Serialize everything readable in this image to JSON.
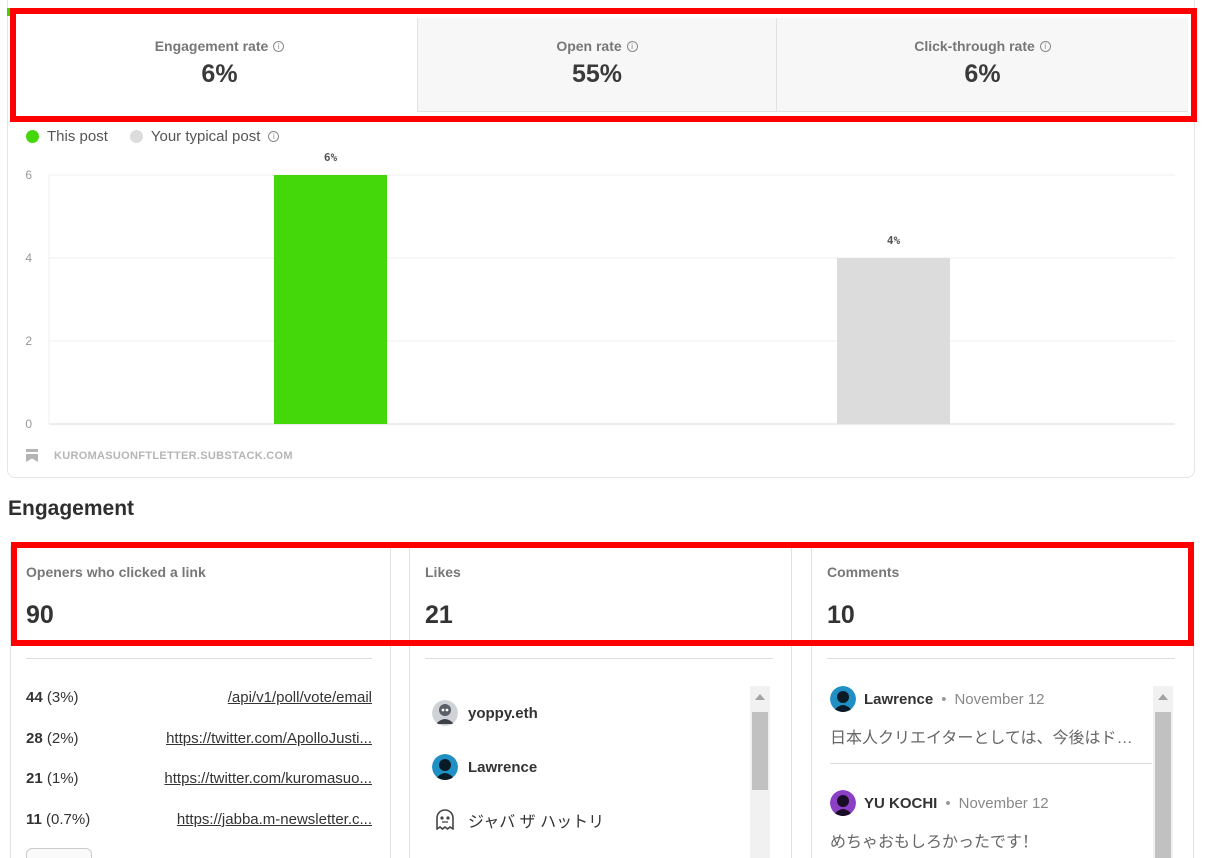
{
  "metrics": {
    "tabs": [
      {
        "label": "Engagement rate",
        "value": "6%",
        "active": true
      },
      {
        "label": "Open rate",
        "value": "55%",
        "active": false
      },
      {
        "label": "Click-through rate",
        "value": "6%",
        "active": false
      }
    ]
  },
  "legend": {
    "this_post": "This post",
    "typical_post": "Your typical post"
  },
  "chart_data": {
    "type": "bar",
    "categories": [
      "This post",
      "Your typical post"
    ],
    "values": [
      6,
      4
    ],
    "data_labels": [
      "6%",
      "4%"
    ],
    "colors": [
      "#44d80a",
      "#dcdcdc"
    ],
    "yticks": [
      0,
      2,
      4,
      6
    ],
    "ylim": [
      0,
      6
    ],
    "grid": true
  },
  "watermark": "KUROMASUONFTLETTER.SUBSTACK.COM",
  "engagement": {
    "title": "Engagement",
    "clicks": {
      "label": "Openers who clicked a link",
      "value": "90",
      "links": [
        {
          "count": "44",
          "pct": "(3%)",
          "url": "/api/v1/poll/vote/email"
        },
        {
          "count": "28",
          "pct": "(2%)",
          "url": "https://twitter.com/ApolloJusti..."
        },
        {
          "count": "21",
          "pct": "(1%)",
          "url": "https://twitter.com/kuromasuo..."
        },
        {
          "count": "11",
          "pct": "(0.7%)",
          "url": "https://jabba.m-newsletter.c..."
        }
      ]
    },
    "likes": {
      "label": "Likes",
      "value": "21",
      "users": [
        "yoppy.eth",
        "Lawrence",
        "ジャバ ザ ハットリ"
      ]
    },
    "comments": {
      "label": "Comments",
      "value": "10",
      "items": [
        {
          "author": "Lawrence",
          "date": "November 12",
          "text": "日本人クリエイターとしては、今後はドル..."
        },
        {
          "author": "YU KOCHI",
          "date": "November 12",
          "text": "めちゃおもしろかったです！"
        }
      ]
    }
  }
}
